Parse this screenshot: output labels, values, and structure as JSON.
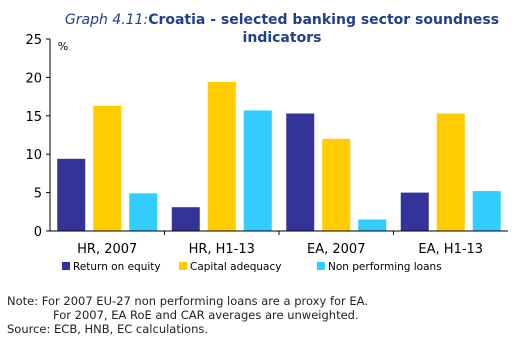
{
  "chart_data": {
    "type": "bar",
    "title_prefix": "Graph 4.11:",
    "title_line1": "Croatia - selected banking sector soundness",
    "title_line2": "indicators",
    "ylabel": "%",
    "ylim": [
      0,
      25
    ],
    "yticks": [
      0,
      5,
      10,
      15,
      20,
      25
    ],
    "grid": false,
    "legend_position": "bottom",
    "categories": [
      "HR, 2007",
      "HR, H1-13",
      "EA, 2007",
      "EA, H1-13"
    ],
    "series": [
      {
        "name": "Return on equity",
        "color": "#333399",
        "values": [
          9.4,
          3.1,
          15.3,
          5.0
        ]
      },
      {
        "name": "Capital adequacy",
        "color": "#FFCC00",
        "values": [
          16.3,
          19.4,
          12.0,
          15.3
        ]
      },
      {
        "name": "Non performing loans",
        "color": "#33CCFF",
        "values": [
          4.9,
          15.7,
          1.5,
          5.2
        ]
      }
    ]
  },
  "notes": {
    "line1": "Note: For 2007 EU-27 non performing loans are a proxy for EA.",
    "line2": "For 2007, EA RoE and CAR averages are unweighted.",
    "source": "Source: ECB, HNB, EC calculations."
  },
  "colors": {
    "title_prefix": "#1F3F8F",
    "title_main": "#1F3F8F"
  }
}
